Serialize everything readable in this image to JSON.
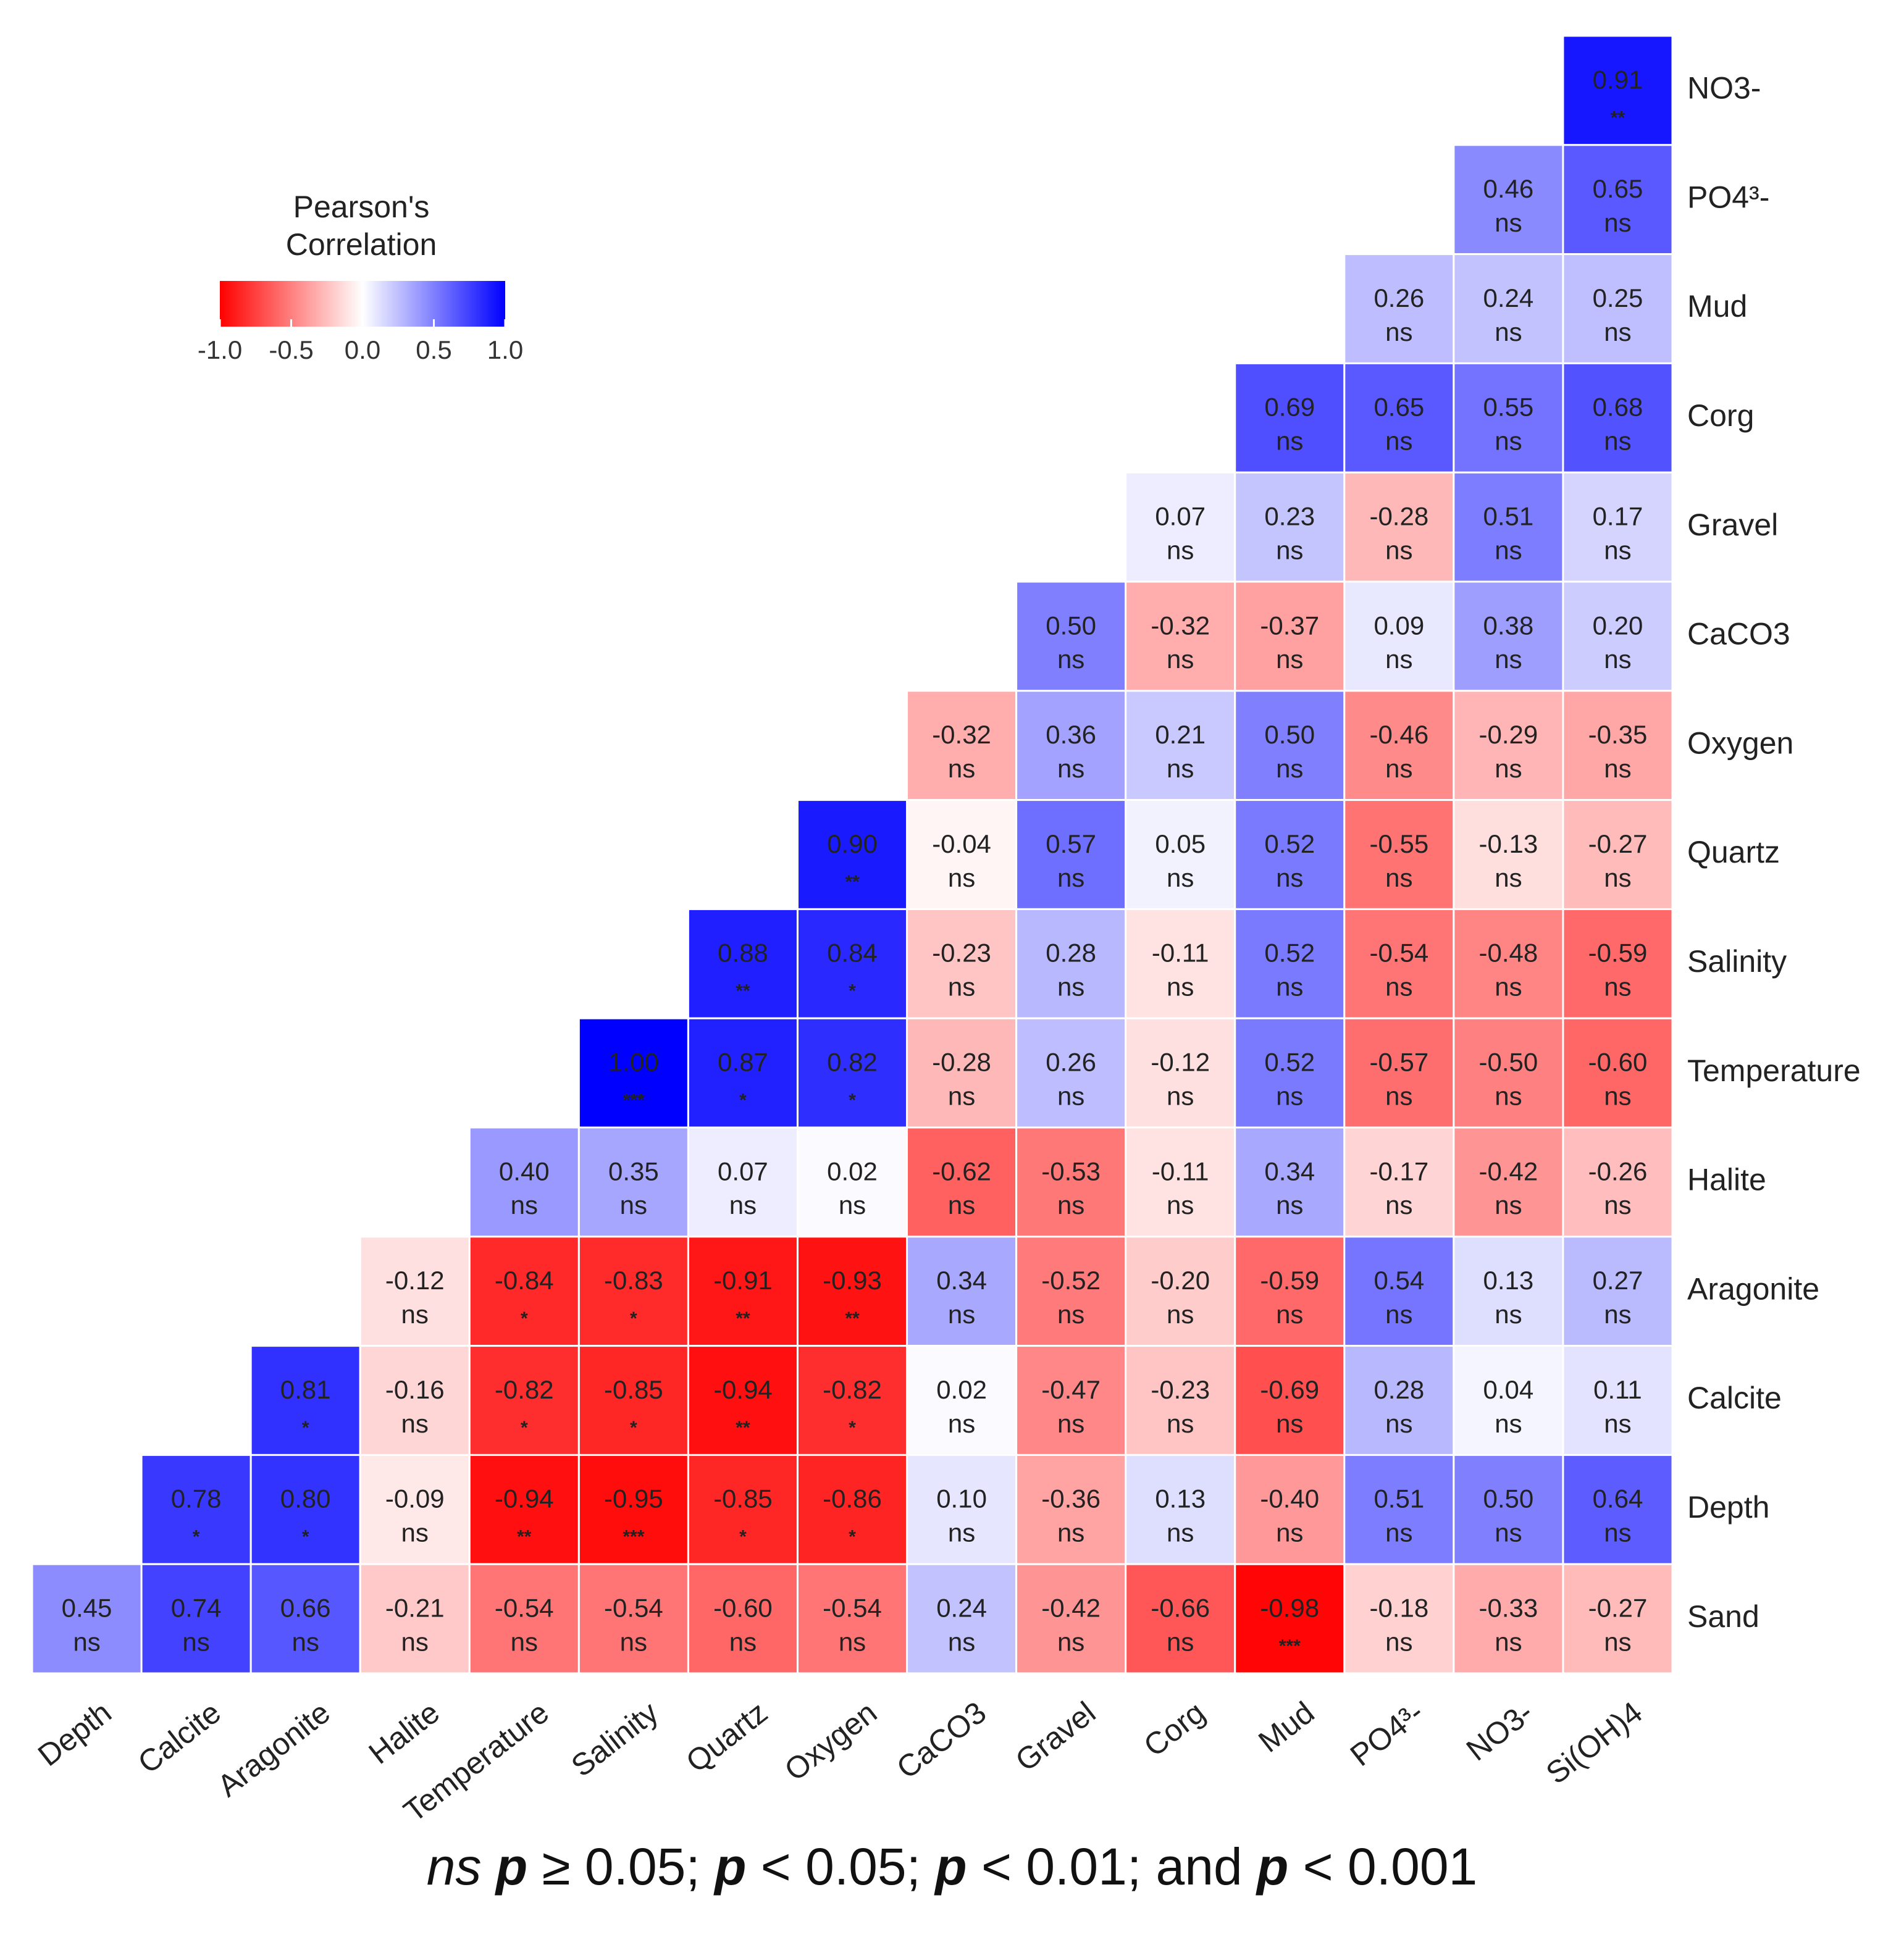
{
  "chart_data": {
    "type": "heatmap",
    "legend": {
      "title_lines": [
        "Pearson's",
        "Correlation"
      ],
      "ticks": [
        "-1.0",
        "-0.5",
        "0.0",
        "0.5",
        "1.0"
      ],
      "tick_values": [
        -1.0,
        -0.5,
        0.0,
        0.5,
        1.0
      ],
      "placement": "top-left"
    },
    "colors": {
      "negative": "#ff0000",
      "zero": "#ffffff",
      "positive": "#0000ff"
    },
    "row_labels": [
      "NO3-",
      "PO4³-",
      "Mud",
      "Corg",
      "Gravel",
      "CaCO3",
      "Oxygen",
      "Quartz",
      "Salinity",
      "Temperature",
      "Halite",
      "Aragonite",
      "Calcite",
      "Depth",
      "Sand"
    ],
    "col_labels": [
      "Depth",
      "Calcite",
      "Aragonite",
      "Halite",
      "Temperature",
      "Salinity",
      "Quartz",
      "Oxygen",
      "CaCO3",
      "Gravel",
      "Corg",
      "Mud",
      "PO4³-",
      "NO3-",
      "Si(OH)4"
    ],
    "rows": [
      {
        "label": "NO3-",
        "values": [
          0.91
        ],
        "labels": [
          "0.91"
        ],
        "sig": [
          "**"
        ]
      },
      {
        "label": "PO4³-",
        "values": [
          0.46,
          0.65
        ],
        "labels": [
          "0.46",
          "0.65"
        ],
        "sig": [
          "ns",
          "ns"
        ]
      },
      {
        "label": "Mud",
        "values": [
          0.26,
          0.24,
          0.25
        ],
        "labels": [
          "0.26",
          "0.24",
          "0.25"
        ],
        "sig": [
          "ns",
          "ns",
          "ns"
        ]
      },
      {
        "label": "Corg",
        "values": [
          0.69,
          0.65,
          0.55,
          0.68
        ],
        "labels": [
          "0.69",
          "0.65",
          "0.55",
          "0.68"
        ],
        "sig": [
          "ns",
          "ns",
          "ns",
          "ns"
        ]
      },
      {
        "label": "Gravel",
        "values": [
          0.07,
          0.23,
          -0.28,
          0.51,
          0.17
        ],
        "labels": [
          "0.07",
          "0.23",
          "-0.28",
          "0.51",
          "0.17"
        ],
        "sig": [
          "ns",
          "ns",
          "ns",
          "ns",
          "ns"
        ]
      },
      {
        "label": "CaCO3",
        "values": [
          0.5,
          -0.32,
          -0.37,
          0.09,
          0.38,
          0.2
        ],
        "labels": [
          "0.50",
          "-0.32",
          "-0.37",
          "0.09",
          "0.38",
          "0.20"
        ],
        "sig": [
          "ns",
          "ns",
          "ns",
          "ns",
          "ns",
          "ns"
        ]
      },
      {
        "label": "Oxygen",
        "values": [
          -0.32,
          0.36,
          0.21,
          0.5,
          -0.46,
          -0.29,
          -0.35
        ],
        "labels": [
          "-0.32",
          "0.36",
          "0.21",
          "0.50",
          "-0.46",
          "-0.29",
          "-0.35"
        ],
        "sig": [
          "ns",
          "ns",
          "ns",
          "ns",
          "ns",
          "ns",
          "ns"
        ]
      },
      {
        "label": "Quartz",
        "values": [
          0.9,
          -0.04,
          0.57,
          0.05,
          0.52,
          -0.55,
          -0.13,
          -0.27
        ],
        "labels": [
          "0.90",
          "-0.04",
          "0.57",
          "0.05",
          "0.52",
          "-0.55",
          "-0.13",
          "-0.27"
        ],
        "sig": [
          "**",
          "ns",
          "ns",
          "ns",
          "ns",
          "ns",
          "ns",
          "ns"
        ]
      },
      {
        "label": "Salinity",
        "values": [
          0.88,
          0.84,
          -0.23,
          0.28,
          -0.11,
          0.52,
          -0.54,
          -0.48,
          -0.59
        ],
        "labels": [
          "0.88",
          "0.84",
          "-0.23",
          "0.28",
          "-0.11",
          "0.52",
          "-0.54",
          "-0.48",
          "-0.59"
        ],
        "sig": [
          "**",
          "*",
          "ns",
          "ns",
          "ns",
          "ns",
          "ns",
          "ns",
          "ns"
        ]
      },
      {
        "label": "Temperature",
        "values": [
          1.0,
          0.87,
          0.82,
          -0.28,
          0.26,
          -0.12,
          0.52,
          -0.57,
          -0.5,
          -0.6
        ],
        "labels": [
          "1.00",
          "0.87",
          "0.82",
          "-0.28",
          "0.26",
          "-0.12",
          "0.52",
          "-0.57",
          "-0.50",
          "-0.60"
        ],
        "sig": [
          "***",
          "*",
          "*",
          "ns",
          "ns",
          "ns",
          "ns",
          "ns",
          "ns",
          "ns"
        ]
      },
      {
        "label": "Halite",
        "values": [
          0.4,
          0.35,
          0.07,
          0.02,
          -0.62,
          -0.53,
          -0.11,
          0.34,
          -0.17,
          -0.42,
          -0.26
        ],
        "labels": [
          "0.40",
          "0.35",
          "0.07",
          "0.02",
          "-0.62",
          "-0.53",
          "-0.11",
          "0.34",
          "-0.17",
          "-0.42",
          "-0.26"
        ],
        "sig": [
          "ns",
          "ns",
          "ns",
          "ns",
          "ns",
          "ns",
          "ns",
          "ns",
          "ns",
          "ns",
          "ns"
        ]
      },
      {
        "label": "Aragonite",
        "values": [
          -0.12,
          -0.84,
          -0.83,
          -0.91,
          -0.93,
          0.34,
          -0.52,
          -0.2,
          -0.59,
          0.54,
          0.13,
          0.27
        ],
        "labels": [
          "-0.12",
          "-0.84",
          "-0.83",
          "-0.91",
          "-0.93",
          "0.34",
          "-0.52",
          "-0.20",
          "-0.59",
          "0.54",
          "0.13",
          "0.27"
        ],
        "sig": [
          "ns",
          "*",
          "*",
          "**",
          "**",
          "ns",
          "ns",
          "ns",
          "ns",
          "ns",
          "ns",
          "ns"
        ]
      },
      {
        "label": "Calcite",
        "values": [
          0.81,
          -0.16,
          -0.82,
          -0.85,
          -0.94,
          -0.82,
          0.02,
          -0.47,
          -0.23,
          -0.69,
          0.28,
          0.04,
          0.11
        ],
        "labels": [
          "0.81",
          "-0.16",
          "-0.82",
          "-0.85",
          "-0.94",
          "-0.82",
          "0.02",
          "-0.47",
          "-0.23",
          "-0.69",
          "0.28",
          "0.04",
          "0.11"
        ],
        "sig": [
          "*",
          "ns",
          "*",
          "*",
          "**",
          "*",
          "ns",
          "ns",
          "ns",
          "ns",
          "ns",
          "ns",
          "ns"
        ]
      },
      {
        "label": "Depth",
        "values": [
          0.78,
          0.8,
          -0.09,
          -0.94,
          -0.95,
          -0.85,
          -0.86,
          0.1,
          -0.36,
          0.13,
          -0.4,
          0.51,
          0.5,
          0.64
        ],
        "labels": [
          "0.78",
          "0.80",
          "-0.09",
          "-0.94",
          "-0.95",
          "-0.85",
          "-0.86",
          "0.10",
          "-0.36",
          "0.13",
          "-0.40",
          "0.51",
          "0.50",
          "0.64"
        ],
        "sig": [
          "*",
          "*",
          "ns",
          "**",
          "***",
          "*",
          "*",
          "ns",
          "ns",
          "ns",
          "ns",
          "ns",
          "ns",
          "ns"
        ]
      },
      {
        "label": "Sand",
        "values": [
          0.45,
          0.74,
          0.66,
          -0.21,
          -0.54,
          -0.54,
          -0.6,
          -0.54,
          0.24,
          -0.42,
          -0.66,
          -0.98,
          -0.18,
          -0.33,
          -0.27
        ],
        "labels": [
          "0.45",
          "0.74",
          "0.66",
          "-0.21",
          "-0.54",
          "-0.54",
          "-0.60",
          "-0.54",
          "0.24",
          "-0.42",
          "-0.66",
          "-0.98",
          "-0.18",
          "-0.33",
          "-0.27"
        ],
        "sig": [
          "ns",
          "ns",
          "ns",
          "ns",
          "ns",
          "ns",
          "ns",
          "ns",
          "ns",
          "ns",
          "ns",
          "***",
          "ns",
          "ns",
          "ns"
        ]
      }
    ]
  },
  "footnote": {
    "ns": "ns",
    "p": "p",
    "part1": " ≥ 0.05; ",
    "part2": " < 0.05; ",
    "part3": " < 0.01; and ",
    "part4": " < 0.001"
  }
}
